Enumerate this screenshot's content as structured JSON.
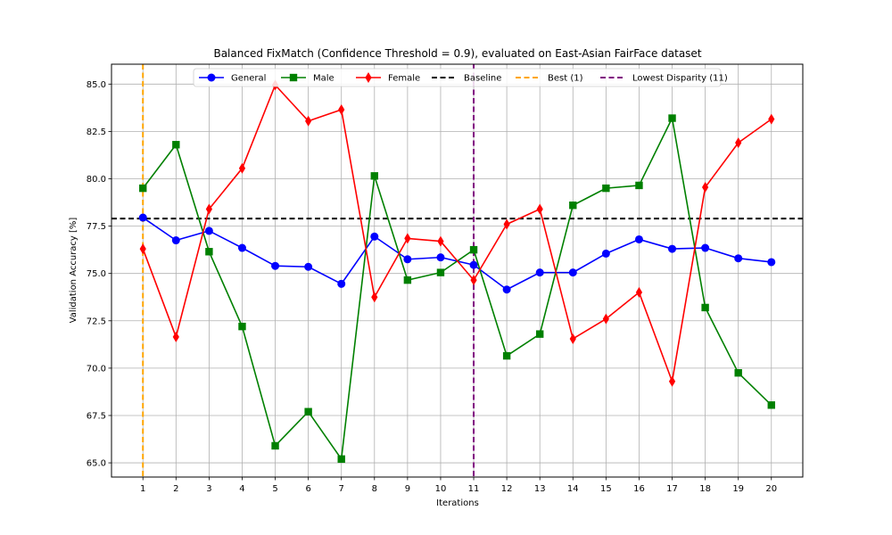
{
  "chart_data": {
    "type": "line",
    "title": "Balanced FixMatch (Confidence Threshold = 0.9), evaluated on East-Asian FairFace dataset",
    "xlabel": "Iterations",
    "ylabel": "Validation Accuracy [%]",
    "x": [
      1,
      2,
      3,
      4,
      5,
      6,
      7,
      8,
      9,
      10,
      11,
      12,
      13,
      14,
      15,
      16,
      17,
      18,
      19,
      20
    ],
    "xlim": [
      0.05,
      20.95
    ],
    "ylim": [
      64.25,
      86.05
    ],
    "yticks": [
      65.0,
      67.5,
      70.0,
      72.5,
      75.0,
      77.5,
      80.0,
      82.5,
      85.0
    ],
    "ytick_labels": [
      "65.0",
      "67.5",
      "70.0",
      "72.5",
      "75.0",
      "77.5",
      "80.0",
      "82.5",
      "85.0"
    ],
    "xtick_labels": [
      "1",
      "2",
      "3",
      "4",
      "5",
      "6",
      "7",
      "8",
      "9",
      "10",
      "11",
      "12",
      "13",
      "14",
      "15",
      "16",
      "17",
      "18",
      "19",
      "20"
    ],
    "grid": true,
    "legend_position": "top-center",
    "series": [
      {
        "name": "General",
        "color": "#0000ff",
        "marker": "circle",
        "values": [
          77.95,
          76.75,
          77.25,
          76.35,
          75.4,
          75.35,
          74.45,
          76.95,
          75.75,
          75.85,
          75.45,
          74.15,
          75.05,
          75.05,
          76.05,
          76.8,
          76.3,
          76.35,
          75.8,
          75.6
        ]
      },
      {
        "name": "Male",
        "color": "#008000",
        "marker": "square",
        "values": [
          79.5,
          81.8,
          76.15,
          72.2,
          65.9,
          67.7,
          65.2,
          80.15,
          74.65,
          75.05,
          76.25,
          70.65,
          71.8,
          78.6,
          79.5,
          79.65,
          83.2,
          73.2,
          69.75,
          68.05
        ]
      },
      {
        "name": "Female",
        "color": "#ff0000",
        "marker": "diamond",
        "values": [
          76.3,
          71.65,
          78.4,
          80.55,
          84.95,
          83.05,
          83.65,
          73.75,
          76.85,
          76.7,
          74.65,
          77.6,
          78.4,
          71.55,
          72.6,
          74.0,
          69.3,
          79.55,
          81.9,
          83.15
        ]
      }
    ],
    "reference_lines": [
      {
        "name": "Baseline",
        "orientation": "horizontal",
        "value": 77.9,
        "color": "#000000",
        "style": "dashed"
      },
      {
        "name": "Best (1)",
        "orientation": "vertical",
        "value": 1,
        "color": "#ffa500",
        "style": "dashed"
      },
      {
        "name": "Lowest Disparity (11)",
        "orientation": "vertical",
        "value": 11,
        "color": "#800080",
        "style": "dashed"
      }
    ]
  }
}
